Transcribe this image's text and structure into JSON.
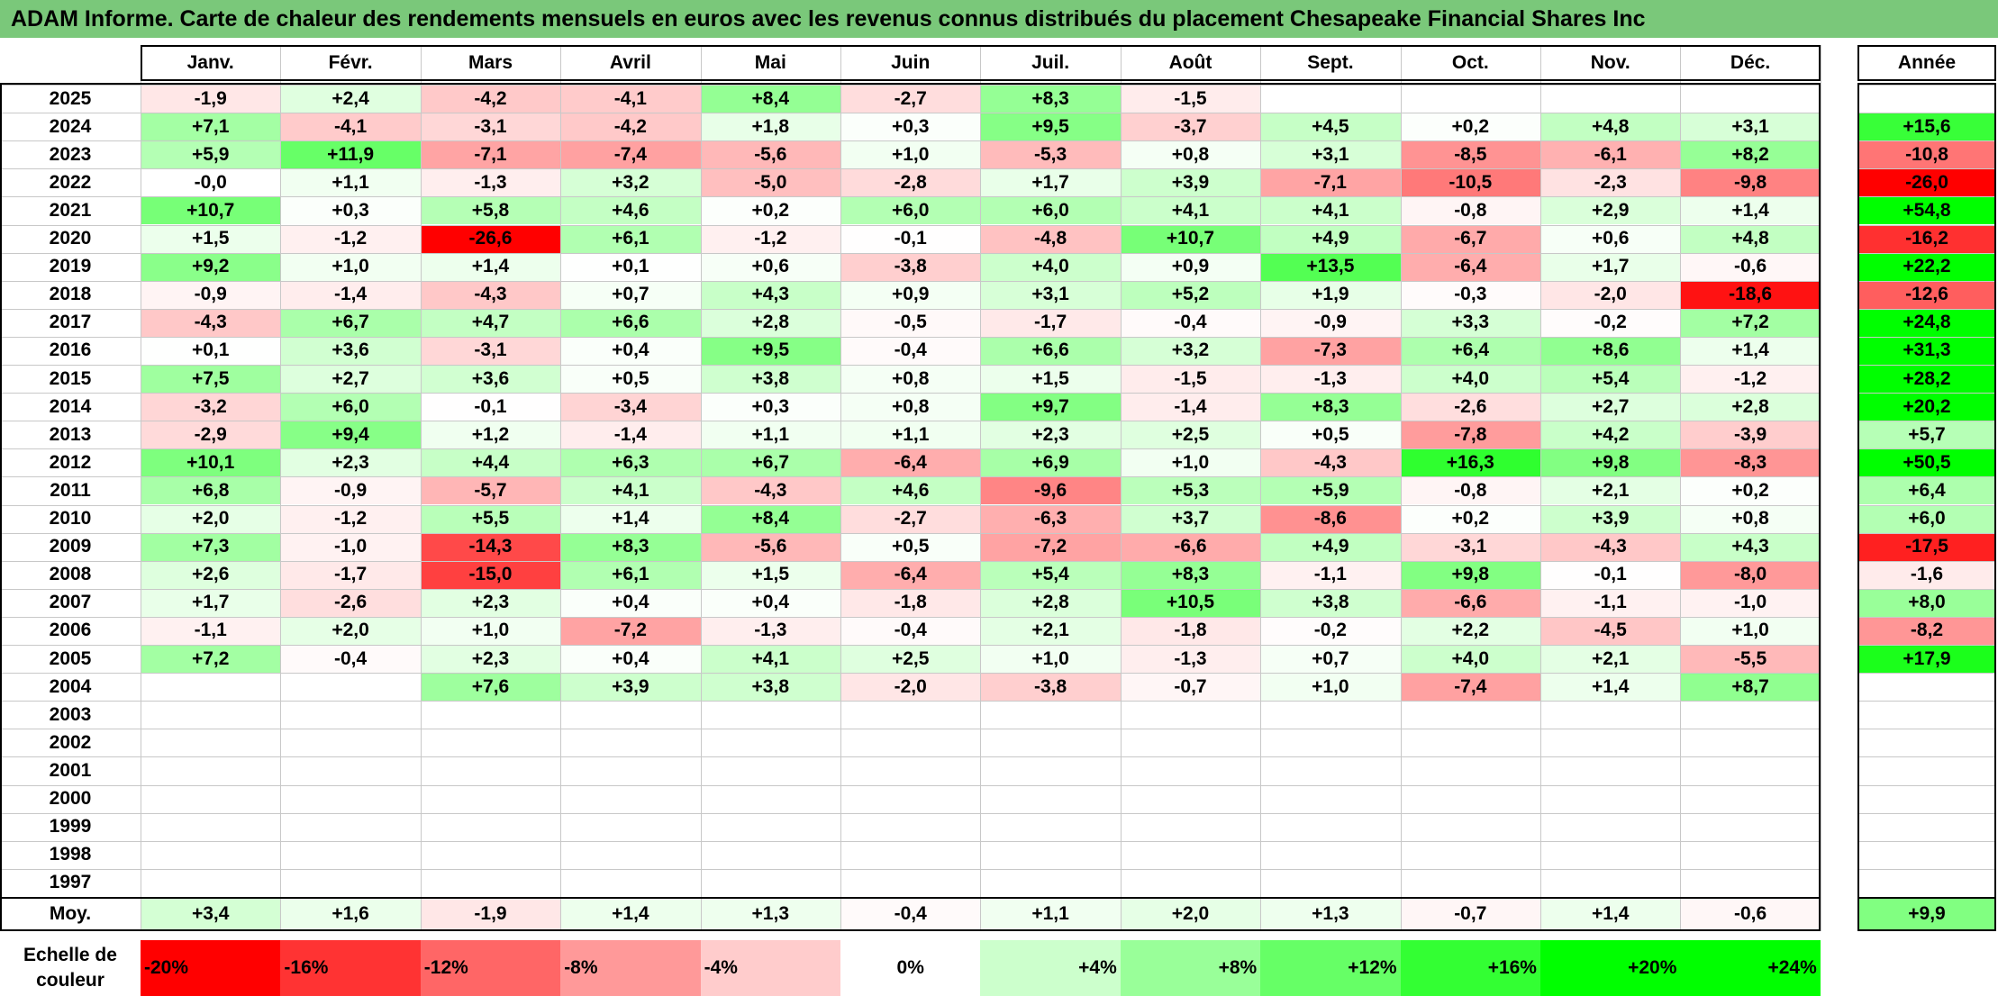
{
  "title": "ADAM Informe. Carte de chaleur des rendements mensuels en euros avec les revenus connus distribués du placement Chesapeake Financial Shares Inc",
  "chart_data": {
    "type": "heatmap",
    "months": [
      "Janv.",
      "Févr.",
      "Mars",
      "Avril",
      "Mai",
      "Juin",
      "Juil.",
      "Août",
      "Sept.",
      "Oct.",
      "Nov.",
      "Déc."
    ],
    "year_header": "Année",
    "rows": [
      {
        "year": "2025",
        "values": [
          "-1,9",
          "+2,4",
          "-4,2",
          "-4,1",
          "+8,4",
          "-2,7",
          "+8,3",
          "-1,5",
          "",
          "",
          "",
          ""
        ],
        "annual": ""
      },
      {
        "year": "2024",
        "values": [
          "+7,1",
          "-4,1",
          "-3,1",
          "-4,2",
          "+1,8",
          "+0,3",
          "+9,5",
          "-3,7",
          "+4,5",
          "+0,2",
          "+4,8",
          "+3,1"
        ],
        "annual": "+15,6"
      },
      {
        "year": "2023",
        "values": [
          "+5,9",
          "+11,9",
          "-7,1",
          "-7,4",
          "-5,6",
          "+1,0",
          "-5,3",
          "+0,8",
          "+3,1",
          "-8,5",
          "-6,1",
          "+8,2"
        ],
        "annual": "-10,8"
      },
      {
        "year": "2022",
        "values": [
          "-0,0",
          "+1,1",
          "-1,3",
          "+3,2",
          "-5,0",
          "-2,8",
          "+1,7",
          "+3,9",
          "-7,1",
          "-10,5",
          "-2,3",
          "-9,8"
        ],
        "annual": "-26,0"
      },
      {
        "year": "2021",
        "values": [
          "+10,7",
          "+0,3",
          "+5,8",
          "+4,6",
          "+0,2",
          "+6,0",
          "+6,0",
          "+4,1",
          "+4,1",
          "-0,8",
          "+2,9",
          "+1,4"
        ],
        "annual": "+54,8"
      },
      {
        "year": "2020",
        "values": [
          "+1,5",
          "-1,2",
          "-26,6",
          "+6,1",
          "-1,2",
          "-0,1",
          "-4,8",
          "+10,7",
          "+4,9",
          "-6,7",
          "+0,6",
          "+4,8"
        ],
        "annual": "-16,2"
      },
      {
        "year": "2019",
        "values": [
          "+9,2",
          "+1,0",
          "+1,4",
          "+0,1",
          "+0,6",
          "-3,8",
          "+4,0",
          "+0,9",
          "+13,5",
          "-6,4",
          "+1,7",
          "-0,6"
        ],
        "annual": "+22,2"
      },
      {
        "year": "2018",
        "values": [
          "-0,9",
          "-1,4",
          "-4,3",
          "+0,7",
          "+4,3",
          "+0,9",
          "+3,1",
          "+5,2",
          "+1,9",
          "-0,3",
          "-2,0",
          "-18,6"
        ],
        "annual": "-12,6"
      },
      {
        "year": "2017",
        "values": [
          "-4,3",
          "+6,7",
          "+4,7",
          "+6,6",
          "+2,8",
          "-0,5",
          "-1,7",
          "-0,4",
          "-0,9",
          "+3,3",
          "-0,2",
          "+7,2"
        ],
        "annual": "+24,8"
      },
      {
        "year": "2016",
        "values": [
          "+0,1",
          "+3,6",
          "-3,1",
          "+0,4",
          "+9,5",
          "-0,4",
          "+6,6",
          "+3,2",
          "-7,3",
          "+6,4",
          "+8,6",
          "+1,4"
        ],
        "annual": "+31,3"
      },
      {
        "year": "2015",
        "values": [
          "+7,5",
          "+2,7",
          "+3,6",
          "+0,5",
          "+3,8",
          "+0,8",
          "+1,5",
          "-1,5",
          "-1,3",
          "+4,0",
          "+5,4",
          "-1,2"
        ],
        "annual": "+28,2"
      },
      {
        "year": "2014",
        "values": [
          "-3,2",
          "+6,0",
          "-0,1",
          "-3,4",
          "+0,3",
          "+0,8",
          "+9,7",
          "-1,4",
          "+8,3",
          "-2,6",
          "+2,7",
          "+2,8"
        ],
        "annual": "+20,2"
      },
      {
        "year": "2013",
        "values": [
          "-2,9",
          "+9,4",
          "+1,2",
          "-1,4",
          "+1,1",
          "+1,1",
          "+2,3",
          "+2,5",
          "+0,5",
          "-7,8",
          "+4,2",
          "-3,9"
        ],
        "annual": "+5,7"
      },
      {
        "year": "2012",
        "values": [
          "+10,1",
          "+2,3",
          "+4,4",
          "+6,3",
          "+6,7",
          "-6,4",
          "+6,9",
          "+1,0",
          "-4,3",
          "+16,3",
          "+9,8",
          "-8,3"
        ],
        "annual": "+50,5"
      },
      {
        "year": "2011",
        "values": [
          "+6,8",
          "-0,9",
          "-5,7",
          "+4,1",
          "-4,3",
          "+4,6",
          "-9,6",
          "+5,3",
          "+5,9",
          "-0,8",
          "+2,1",
          "+0,2"
        ],
        "annual": "+6,4"
      },
      {
        "year": "2010",
        "values": [
          "+2,0",
          "-1,2",
          "+5,5",
          "+1,4",
          "+8,4",
          "-2,7",
          "-6,3",
          "+3,7",
          "-8,6",
          "+0,2",
          "+3,9",
          "+0,8"
        ],
        "annual": "+6,0"
      },
      {
        "year": "2009",
        "values": [
          "+7,3",
          "-1,0",
          "-14,3",
          "+8,3",
          "-5,6",
          "+0,5",
          "-7,2",
          "-6,6",
          "+4,9",
          "-3,1",
          "-4,3",
          "+4,3"
        ],
        "annual": "-17,5"
      },
      {
        "year": "2008",
        "values": [
          "+2,6",
          "-1,7",
          "-15,0",
          "+6,1",
          "+1,5",
          "-6,4",
          "+5,4",
          "+8,3",
          "-1,1",
          "+9,8",
          "-0,1",
          "-8,0"
        ],
        "annual": "-1,6"
      },
      {
        "year": "2007",
        "values": [
          "+1,7",
          "-2,6",
          "+2,3",
          "+0,4",
          "+0,4",
          "-1,8",
          "+2,8",
          "+10,5",
          "+3,8",
          "-6,6",
          "-1,1",
          "-1,0"
        ],
        "annual": "+8,0"
      },
      {
        "year": "2006",
        "values": [
          "-1,1",
          "+2,0",
          "+1,0",
          "-7,2",
          "-1,3",
          "-0,4",
          "+2,1",
          "-1,8",
          "-0,2",
          "+2,2",
          "-4,5",
          "+1,0"
        ],
        "annual": "-8,2"
      },
      {
        "year": "2005",
        "values": [
          "+7,2",
          "-0,4",
          "+2,3",
          "+0,4",
          "+4,1",
          "+2,5",
          "+1,0",
          "-1,3",
          "+0,7",
          "+4,0",
          "+2,1",
          "-5,5"
        ],
        "annual": "+17,9"
      },
      {
        "year": "2004",
        "values": [
          "",
          "",
          "+7,6",
          "+3,9",
          "+3,8",
          "-2,0",
          "-3,8",
          "-0,7",
          "+1,0",
          "-7,4",
          "+1,4",
          "+8,7"
        ],
        "annual": ""
      },
      {
        "year": "2003",
        "values": [
          "",
          "",
          "",
          "",
          "",
          "",
          "",
          "",
          "",
          "",
          "",
          ""
        ],
        "annual": ""
      },
      {
        "year": "2002",
        "values": [
          "",
          "",
          "",
          "",
          "",
          "",
          "",
          "",
          "",
          "",
          "",
          ""
        ],
        "annual": ""
      },
      {
        "year": "2001",
        "values": [
          "",
          "",
          "",
          "",
          "",
          "",
          "",
          "",
          "",
          "",
          "",
          ""
        ],
        "annual": ""
      },
      {
        "year": "2000",
        "values": [
          "",
          "",
          "",
          "",
          "",
          "",
          "",
          "",
          "",
          "",
          "",
          ""
        ],
        "annual": ""
      },
      {
        "year": "1999",
        "values": [
          "",
          "",
          "",
          "",
          "",
          "",
          "",
          "",
          "",
          "",
          "",
          ""
        ],
        "annual": ""
      },
      {
        "year": "1998",
        "values": [
          "",
          "",
          "",
          "",
          "",
          "",
          "",
          "",
          "",
          "",
          "",
          ""
        ],
        "annual": ""
      },
      {
        "year": "1997",
        "values": [
          "",
          "",
          "",
          "",
          "",
          "",
          "",
          "",
          "",
          "",
          "",
          ""
        ],
        "annual": ""
      }
    ],
    "average": {
      "label": "Moy.",
      "values": [
        "+3,4",
        "+1,6",
        "-1,9",
        "+1,4",
        "+1,3",
        "-0,4",
        "+1,1",
        "+2,0",
        "+1,3",
        "-0,7",
        "+1,4",
        "-0,6"
      ],
      "annual": "+9,9"
    },
    "color_scale": {
      "label": "Echelle de\ncouleur",
      "stops": [
        "-20%",
        "-16%",
        "-12%",
        "-8%",
        "-4%",
        "0%",
        "+4%",
        "+8%",
        "+12%",
        "+16%",
        "+20%",
        "+24%"
      ],
      "negative_color": "#ff0000",
      "positive_color": "#00ff00",
      "neutral_color": "#ffffff"
    }
  }
}
